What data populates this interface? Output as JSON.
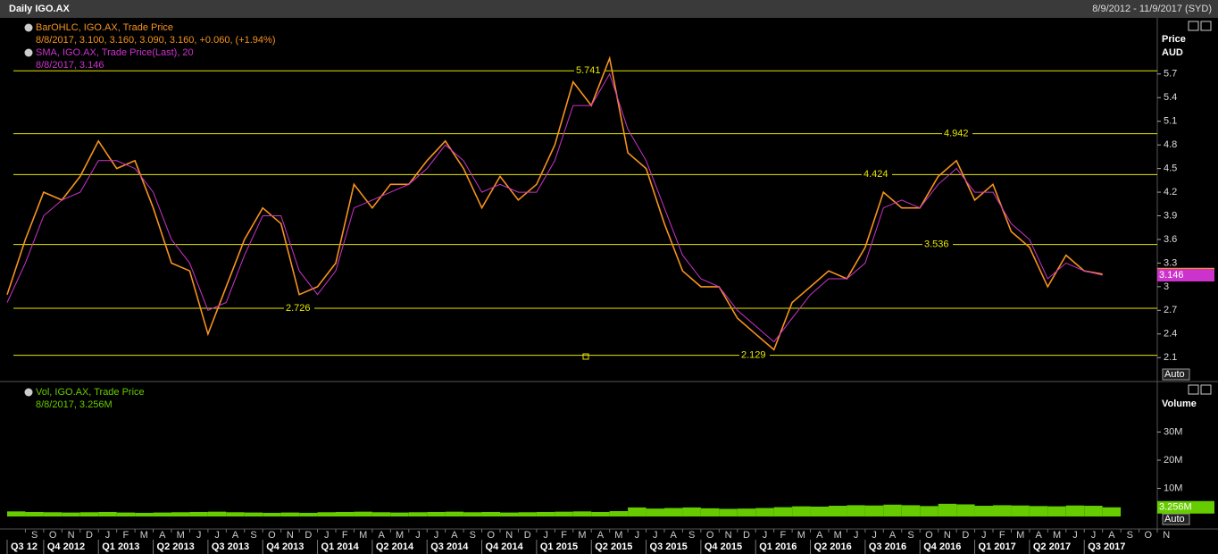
{
  "header": {
    "title": "Daily IGO.AX",
    "range": "8/9/2012 - 11/9/2017 (SYD)"
  },
  "chart_data": [
    {
      "type": "line",
      "legend": [
        [
          "BarOHLC, IGO.AX, Trade Price",
          "8/8/2017, 3.100, 3.160, 3.090, 3.160, +0.060, (+1.94%)"
        ],
        [
          "SMA, IGO.AX, Trade Price(Last),  20",
          "8/8/2017, 3.146"
        ]
      ],
      "axis_title": [
        "Price",
        "AUD"
      ],
      "scale_mode": "Auto",
      "x": [
        "2012-08",
        "2012-09",
        "2012-10",
        "2012-11",
        "2012-12",
        "2013-01",
        "2013-02",
        "2013-03",
        "2013-04",
        "2013-05",
        "2013-06",
        "2013-07",
        "2013-08",
        "2013-09",
        "2013-10",
        "2013-11",
        "2013-12",
        "2014-01",
        "2014-02",
        "2014-03",
        "2014-04",
        "2014-05",
        "2014-06",
        "2014-07",
        "2014-08",
        "2014-09",
        "2014-10",
        "2014-11",
        "2014-12",
        "2015-01",
        "2015-02",
        "2015-03",
        "2015-04",
        "2015-05",
        "2015-06",
        "2015-07",
        "2015-08",
        "2015-09",
        "2015-10",
        "2015-11",
        "2015-12",
        "2016-01",
        "2016-02",
        "2016-03",
        "2016-04",
        "2016-05",
        "2016-06",
        "2016-07",
        "2016-08",
        "2016-09",
        "2016-10",
        "2016-11",
        "2016-12",
        "2017-01",
        "2017-02",
        "2017-03",
        "2017-04",
        "2017-05",
        "2017-06",
        "2017-07",
        "2017-08"
      ],
      "series": [
        {
          "name": "BarOHLC",
          "color": "#f7931e",
          "last_label": "3.160",
          "values": [
            2.9,
            3.6,
            4.2,
            4.1,
            4.4,
            4.85,
            4.5,
            4.6,
            4.0,
            3.3,
            3.2,
            2.4,
            3.0,
            3.6,
            4.0,
            3.8,
            2.9,
            3.0,
            3.3,
            4.3,
            4.0,
            4.3,
            4.3,
            4.6,
            4.85,
            4.5,
            4.0,
            4.4,
            4.1,
            4.3,
            4.8,
            5.6,
            5.3,
            5.9,
            4.7,
            4.5,
            3.8,
            3.2,
            3.0,
            3.0,
            2.6,
            2.4,
            2.2,
            2.8,
            3.0,
            3.2,
            3.1,
            3.5,
            4.2,
            4.0,
            4.0,
            4.4,
            4.6,
            4.1,
            4.3,
            3.7,
            3.5,
            3.0,
            3.4,
            3.2,
            3.16
          ]
        },
        {
          "name": "SMA",
          "color": "#cc33cc",
          "last_label": "3.146",
          "values": [
            2.8,
            3.3,
            3.9,
            4.1,
            4.2,
            4.6,
            4.6,
            4.5,
            4.2,
            3.6,
            3.3,
            2.7,
            2.8,
            3.4,
            3.9,
            3.9,
            3.2,
            2.9,
            3.2,
            4.0,
            4.1,
            4.2,
            4.3,
            4.5,
            4.8,
            4.6,
            4.2,
            4.3,
            4.2,
            4.2,
            4.6,
            5.3,
            5.3,
            5.7,
            5.0,
            4.6,
            4.0,
            3.4,
            3.1,
            3.0,
            2.7,
            2.5,
            2.3,
            2.6,
            2.9,
            3.1,
            3.1,
            3.3,
            4.0,
            4.1,
            4.0,
            4.3,
            4.5,
            4.2,
            4.2,
            3.8,
            3.6,
            3.1,
            3.3,
            3.2,
            3.146
          ]
        }
      ],
      "levels": [
        5.741,
        4.942,
        4.424,
        3.536,
        2.726,
        2.129
      ],
      "level_color": "#e6e600",
      "xlim": [
        "2012-08",
        "2017-11"
      ],
      "ylim": [
        1.83,
        6.39
      ],
      "yticks": [
        2.1,
        2.4,
        2.7,
        3.0,
        3.3,
        3.6,
        3.9,
        4.2,
        4.5,
        4.8,
        5.1,
        5.4,
        5.7
      ]
    },
    {
      "type": "bar",
      "legend": [
        [
          "Vol, IGO.AX, Trade Price",
          "8/8/2017, 3.256M"
        ]
      ],
      "axis_title": [
        "Volume"
      ],
      "scale_mode": "Auto",
      "x": [
        "2012-08",
        "2012-09",
        "2012-10",
        "2012-11",
        "2012-12",
        "2013-01",
        "2013-02",
        "2013-03",
        "2013-04",
        "2013-05",
        "2013-06",
        "2013-07",
        "2013-08",
        "2013-09",
        "2013-10",
        "2013-11",
        "2013-12",
        "2014-01",
        "2014-02",
        "2014-03",
        "2014-04",
        "2014-05",
        "2014-06",
        "2014-07",
        "2014-08",
        "2014-09",
        "2014-10",
        "2014-11",
        "2014-12",
        "2015-01",
        "2015-02",
        "2015-03",
        "2015-04",
        "2015-05",
        "2015-06",
        "2015-07",
        "2015-08",
        "2015-09",
        "2015-10",
        "2015-11",
        "2015-12",
        "2016-01",
        "2016-02",
        "2016-03",
        "2016-04",
        "2016-05",
        "2016-06",
        "2016-07",
        "2016-08",
        "2016-09",
        "2016-10",
        "2016-11",
        "2016-12",
        "2017-01",
        "2017-02",
        "2017-03",
        "2017-04",
        "2017-05",
        "2017-06",
        "2017-07",
        "2017-08"
      ],
      "series": [
        {
          "name": "Vol",
          "color": "#66cc00",
          "last_label": "3.256M",
          "values": [
            1800000,
            1600000,
            1500000,
            1400000,
            1500000,
            1600000,
            1400000,
            1300000,
            1400000,
            1500000,
            1600000,
            1700000,
            1500000,
            1400000,
            1300000,
            1400000,
            1300000,
            1500000,
            1600000,
            1700000,
            1500000,
            1400000,
            1500000,
            1600000,
            1700000,
            1500000,
            1600000,
            1400000,
            1500000,
            1600000,
            1700000,
            1800000,
            1600000,
            1900000,
            3200000,
            2800000,
            3000000,
            3200000,
            2900000,
            2700000,
            2800000,
            3000000,
            3300000,
            3600000,
            3500000,
            3800000,
            4000000,
            3900000,
            4200000,
            4000000,
            3700000,
            4500000,
            4300000,
            3800000,
            4000000,
            3900000,
            3700000,
            3600000,
            3900000,
            3800000,
            3256000
          ]
        }
      ],
      "xlim": [
        "2012-08",
        "2017-11"
      ],
      "ylim": [
        0,
        47000000
      ],
      "yticks": [
        {
          "value": 10000000,
          "label": "10M"
        },
        {
          "value": 20000000,
          "label": "20M"
        },
        {
          "value": 30000000,
          "label": "30M"
        }
      ]
    }
  ],
  "xticks": [
    {
      "value": "2012-09",
      "label": "S"
    },
    {
      "value": "2012-10",
      "label": "O"
    },
    {
      "value": "2012-11",
      "label": "N"
    },
    {
      "value": "2012-12",
      "label": "D"
    },
    {
      "value": "2013-01",
      "label": "J"
    },
    {
      "value": "2013-02",
      "label": "F"
    },
    {
      "value": "2013-03",
      "label": "M"
    },
    {
      "value": "2013-04",
      "label": "A"
    },
    {
      "value": "2013-05",
      "label": "M"
    },
    {
      "value": "2013-06",
      "label": "J"
    },
    {
      "value": "2013-07",
      "label": "J"
    },
    {
      "value": "2013-08",
      "label": "A"
    },
    {
      "value": "2013-09",
      "label": "S"
    },
    {
      "value": "2013-10",
      "label": "O"
    },
    {
      "value": "2013-11",
      "label": "N"
    },
    {
      "value": "2013-12",
      "label": "D"
    },
    {
      "value": "2014-01",
      "label": "J"
    },
    {
      "value": "2014-02",
      "label": "F"
    },
    {
      "value": "2014-03",
      "label": "M"
    },
    {
      "value": "2014-04",
      "label": "A"
    },
    {
      "value": "2014-05",
      "label": "M"
    },
    {
      "value": "2014-06",
      "label": "J"
    },
    {
      "value": "2014-07",
      "label": "J"
    },
    {
      "value": "2014-08",
      "label": "A"
    },
    {
      "value": "2014-09",
      "label": "S"
    },
    {
      "value": "2014-10",
      "label": "O"
    },
    {
      "value": "2014-11",
      "label": "N"
    },
    {
      "value": "2014-12",
      "label": "D"
    },
    {
      "value": "2015-01",
      "label": "J"
    },
    {
      "value": "2015-02",
      "label": "F"
    },
    {
      "value": "2015-03",
      "label": "M"
    },
    {
      "value": "2015-04",
      "label": "A"
    },
    {
      "value": "2015-05",
      "label": "M"
    },
    {
      "value": "2015-06",
      "label": "J"
    },
    {
      "value": "2015-07",
      "label": "J"
    },
    {
      "value": "2015-08",
      "label": "A"
    },
    {
      "value": "2015-09",
      "label": "S"
    },
    {
      "value": "2015-10",
      "label": "O"
    },
    {
      "value": "2015-11",
      "label": "N"
    },
    {
      "value": "2015-12",
      "label": "D"
    },
    {
      "value": "2016-01",
      "label": "J"
    },
    {
      "value": "2016-02",
      "label": "F"
    },
    {
      "value": "2016-03",
      "label": "M"
    },
    {
      "value": "2016-04",
      "label": "A"
    },
    {
      "value": "2016-05",
      "label": "M"
    },
    {
      "value": "2016-06",
      "label": "J"
    },
    {
      "value": "2016-07",
      "label": "J"
    },
    {
      "value": "2016-08",
      "label": "A"
    },
    {
      "value": "2016-09",
      "label": "S"
    },
    {
      "value": "2016-10",
      "label": "O"
    },
    {
      "value": "2016-11",
      "label": "N"
    },
    {
      "value": "2016-12",
      "label": "D"
    },
    {
      "value": "2017-01",
      "label": "J"
    },
    {
      "value": "2017-02",
      "label": "F"
    },
    {
      "value": "2017-03",
      "label": "M"
    },
    {
      "value": "2017-04",
      "label": "A"
    },
    {
      "value": "2017-05",
      "label": "M"
    },
    {
      "value": "2017-06",
      "label": "J"
    },
    {
      "value": "2017-07",
      "label": "J"
    },
    {
      "value": "2017-08",
      "label": "A"
    },
    {
      "value": "2017-09",
      "label": "S"
    },
    {
      "value": "2017-10",
      "label": "O"
    },
    {
      "value": "2017-11",
      "label": "N"
    }
  ],
  "quarters": [
    "Q3 12",
    "Q4 2012",
    "Q1 2013",
    "Q2 2013",
    "Q3 2013",
    "Q4 2013",
    "Q1 2014",
    "Q2 2014",
    "Q3 2014",
    "Q4 2014",
    "Q1 2015",
    "Q2 2015",
    "Q3 2015",
    "Q4 2015",
    "Q1 2016",
    "Q2 2016",
    "Q3 2016",
    "Q4 2016",
    "Q1 2017",
    "Q2 2017",
    "Q3 2017"
  ]
}
